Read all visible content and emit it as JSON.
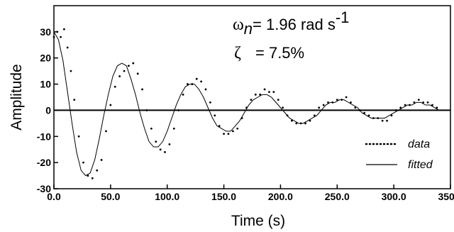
{
  "chart_data": {
    "type": "line",
    "xlabel": "Time (s)",
    "ylabel": "Amplitude",
    "xlim": [
      0,
      350
    ],
    "ylim": [
      -30,
      40
    ],
    "xticks": [
      0,
      50,
      100,
      150,
      200,
      250,
      300,
      350
    ],
    "xtick_labels": [
      "0.0",
      "50.0",
      "100.0",
      "150.0",
      "200.0",
      "250.0",
      "300.0",
      "350.0"
    ],
    "yticks": [
      -30,
      -20,
      -10,
      0,
      10,
      20,
      30
    ],
    "ytick_labels": [
      "-30",
      "-20",
      "-10",
      "0",
      "10",
      "20",
      "30"
    ],
    "grid": false,
    "zero_line": true,
    "legend_position": "bottom-right",
    "annotations": {
      "omega_symbol": "ω",
      "omega_subscript": "n",
      "omega_text": "= 1.96 rad s",
      "omega_superscript": "-1",
      "zeta_symbol": "ζ",
      "zeta_text": "= 7.5%"
    },
    "series": [
      {
        "name": "data",
        "style": "dotted",
        "x": [
          0,
          3,
          6,
          9,
          12,
          15,
          18,
          22,
          26,
          30,
          34,
          38,
          42,
          46,
          50,
          54,
          58,
          62,
          66,
          70,
          74,
          78,
          82,
          86,
          90,
          94,
          98,
          102,
          106,
          110,
          114,
          118,
          122,
          126,
          130,
          134,
          138,
          142,
          146,
          150,
          154,
          158,
          162,
          166,
          170,
          174,
          178,
          182,
          186,
          190,
          194,
          198,
          202,
          206,
          210,
          214,
          218,
          222,
          226,
          230,
          234,
          238,
          242,
          246,
          250,
          254,
          258,
          262,
          266,
          270,
          274,
          278,
          282,
          286,
          290,
          294,
          298,
          302,
          306,
          310,
          314,
          318,
          322,
          326,
          330,
          334,
          338
        ],
        "y": [
          28,
          30,
          28,
          31,
          24,
          15,
          4,
          -10,
          -20,
          -25,
          -26,
          -23,
          -19,
          -8,
          2,
          9,
          13,
          15,
          17,
          18,
          14,
          8,
          0,
          -7,
          -12,
          -15,
          -16,
          -13,
          -7,
          0,
          6,
          10,
          10,
          12,
          11,
          8,
          3,
          -2,
          -6,
          -9,
          -9,
          -8,
          -7,
          -3,
          1,
          4,
          6,
          6,
          8,
          7,
          7,
          4,
          1,
          -2,
          -4,
          -5,
          -5,
          -5,
          -4,
          -2,
          1,
          2,
          3,
          3,
          4,
          4,
          5,
          3,
          1,
          0,
          -1,
          -2,
          -3,
          -3,
          -4,
          -4,
          -2,
          0,
          1,
          2,
          2,
          3,
          4,
          3,
          3,
          2,
          1
        ]
      },
      {
        "name": "fitted",
        "style": "solid",
        "amplitude": 30,
        "omega_n": 1.96,
        "zeta": 0.075,
        "damped_period_s": 64.5,
        "x": [
          0,
          4,
          8,
          12,
          16,
          20,
          24,
          28,
          32,
          36,
          40,
          44,
          48,
          52,
          56,
          60,
          64,
          68,
          72,
          76,
          80,
          84,
          88,
          92,
          96,
          100,
          104,
          108,
          112,
          116,
          120,
          124,
          128,
          132,
          136,
          140,
          144,
          148,
          152,
          156,
          160,
          164,
          168,
          172,
          176,
          180,
          184,
          188,
          192,
          196,
          200,
          204,
          208,
          212,
          216,
          220,
          224,
          228,
          232,
          236,
          240,
          244,
          248,
          252,
          256,
          260,
          264,
          268,
          272,
          276,
          280,
          284,
          288,
          292,
          296,
          300,
          304,
          308,
          312,
          316,
          320,
          324,
          328,
          332,
          336,
          340
        ],
        "y": [
          30,
          27,
          19,
          7,
          -5,
          -16,
          -23,
          -25,
          -24,
          -19,
          -11,
          -2,
          6,
          13,
          17,
          18,
          17,
          12,
          6,
          -1,
          -7,
          -12,
          -14,
          -14,
          -12,
          -8,
          -3,
          2,
          6,
          9,
          10,
          10,
          8,
          5,
          1,
          -3,
          -6,
          -7,
          -8,
          -8,
          -6,
          -4,
          -1,
          2,
          4,
          5,
          6,
          6,
          5,
          3,
          1,
          -1,
          -3,
          -4,
          -5,
          -5,
          -4,
          -3,
          -2,
          0,
          2,
          3,
          3,
          4,
          4,
          3,
          2,
          1,
          -1,
          -2,
          -3,
          -3,
          -3,
          -3,
          -2,
          -1,
          0,
          1,
          2,
          2,
          3,
          3,
          2,
          2,
          1,
          0
        ]
      }
    ]
  }
}
